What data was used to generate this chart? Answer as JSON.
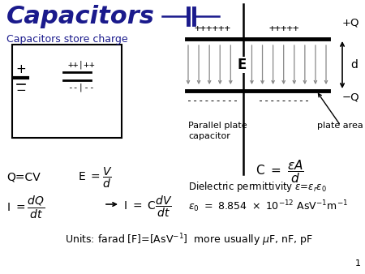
{
  "title": "Capacitors",
  "subtitle": "Capacitors store charge",
  "bg_color": "#ffffff",
  "navy": "#1a1a8c",
  "black": "#000000",
  "gray": "#888888",
  "page_num": "1",
  "figw": 4.5,
  "figh": 3.38,
  "dpi": 100
}
